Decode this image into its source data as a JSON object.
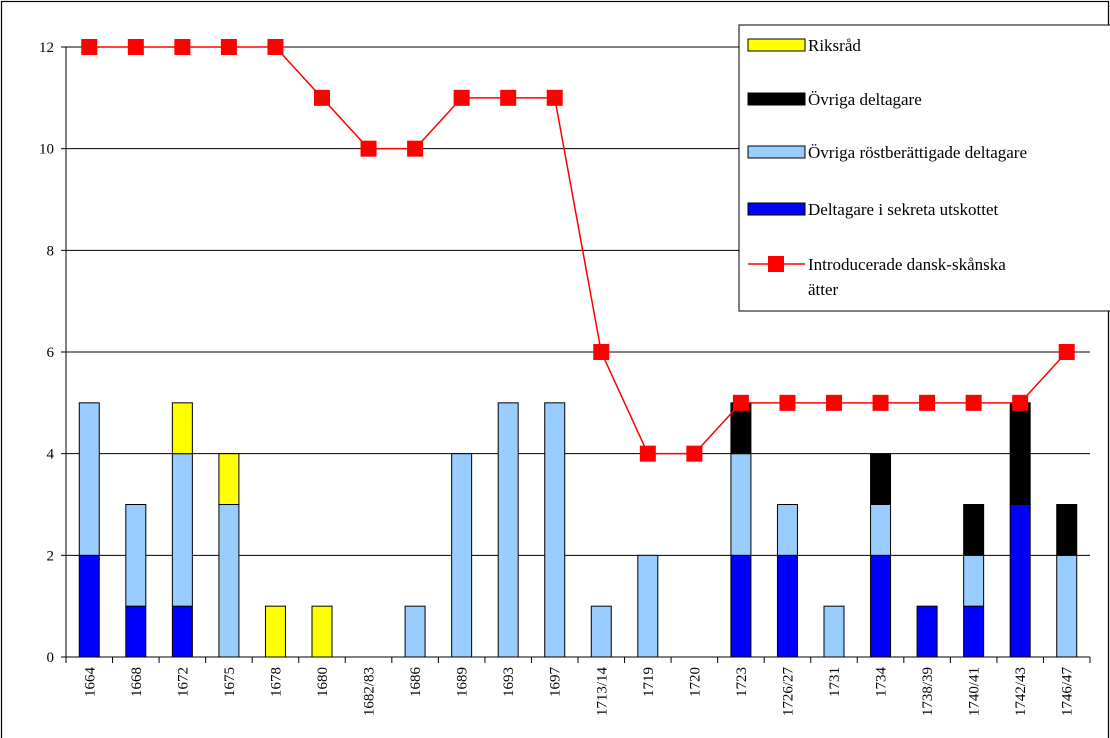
{
  "chart_data": {
    "type": "bar",
    "stacked": true,
    "categories": [
      "1664",
      "1668",
      "1672",
      "1675",
      "1678",
      "1680",
      "1682/83",
      "1686",
      "1689",
      "1693",
      "1697",
      "1713/14",
      "1719",
      "1720",
      "1723",
      "1726/27",
      "1731",
      "1734",
      "1738/39",
      "1740/41",
      "1742/43",
      "1746/47"
    ],
    "ylim": [
      0,
      12
    ],
    "yticks": [
      0,
      2,
      4,
      6,
      8,
      10,
      12
    ],
    "grid": true,
    "legend_position": "top-right",
    "series": [
      {
        "name": "Deltagare i sekreta utskottet",
        "color": "#0000ff",
        "kind": "bar",
        "values": [
          2,
          1,
          1,
          0,
          0,
          0,
          0,
          0,
          0,
          0,
          0,
          0,
          0,
          0,
          2,
          2,
          0,
          2,
          1,
          1,
          3,
          0
        ]
      },
      {
        "name": "Övriga röstberättigade deltagare",
        "color": "#99ccff",
        "kind": "bar",
        "values": [
          3,
          2,
          3,
          3,
          0,
          0,
          0,
          1,
          4,
          5,
          5,
          1,
          2,
          0,
          2,
          1,
          1,
          1,
          0,
          1,
          0,
          2
        ]
      },
      {
        "name": "Övriga deltagare",
        "color": "#000000",
        "kind": "bar",
        "values": [
          0,
          0,
          0,
          0,
          0,
          0,
          0,
          0,
          0,
          0,
          0,
          0,
          0,
          0,
          1,
          0,
          0,
          1,
          0,
          1,
          2,
          1
        ]
      },
      {
        "name": "Riksråd",
        "color": "#ffff00",
        "kind": "bar",
        "values": [
          0,
          0,
          1,
          1,
          1,
          1,
          0,
          0,
          0,
          0,
          0,
          0,
          0,
          0,
          0,
          0,
          0,
          0,
          0,
          0,
          0,
          0
        ]
      },
      {
        "name": "Introducerade dansk-skånska ätter",
        "color": "#ff0000",
        "kind": "line",
        "values": [
          12,
          12,
          12,
          12,
          12,
          11,
          10,
          10,
          11,
          11,
          11,
          6,
          4,
          4,
          5,
          5,
          5,
          5,
          5,
          5,
          5,
          6
        ]
      }
    ],
    "legend_order": [
      "Riksråd",
      "Övriga deltagare",
      "Övriga röstberättigade deltagare",
      "Deltagare i sekreta utskottet",
      "Introducerade dansk-skånska ätter"
    ]
  }
}
